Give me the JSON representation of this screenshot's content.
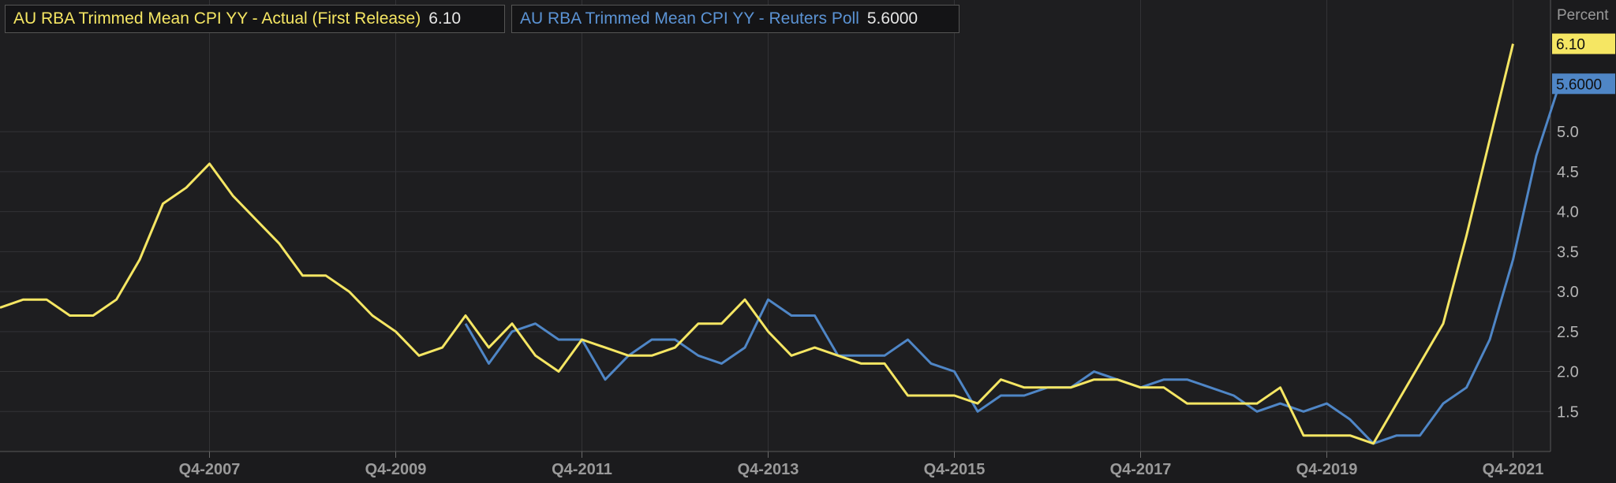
{
  "chart_data": {
    "type": "line",
    "ylabel": "Percent",
    "ylim": [
      1.0,
      6.5
    ],
    "y_ticks": [
      "1.5",
      "2.0",
      "2.5",
      "3.0",
      "3.5",
      "4.0",
      "4.5",
      "5.0"
    ],
    "x_ticks": [
      "Q4-2007",
      "Q4-2009",
      "Q4-2011",
      "Q4-2013",
      "Q4-2015",
      "Q4-2017",
      "Q4-2019",
      "Q4-2021"
    ],
    "grid": true,
    "legend_position": "top-left",
    "series": [
      {
        "name": "AU RBA Trimmed Mean CPI YY - Actual (First Release)",
        "last_value": "6.10",
        "color": "#f5e663",
        "start": "Q3-2005",
        "values": [
          2.8,
          2.9,
          2.9,
          2.7,
          2.7,
          2.9,
          3.4,
          4.1,
          4.3,
          4.6,
          4.2,
          3.9,
          3.6,
          3.2,
          3.2,
          3.0,
          2.7,
          2.5,
          2.2,
          2.3,
          2.7,
          2.3,
          2.6,
          2.2,
          2.0,
          2.4,
          2.3,
          2.2,
          2.2,
          2.3,
          2.6,
          2.6,
          2.9,
          2.5,
          2.2,
          2.3,
          2.2,
          2.1,
          2.1,
          1.7,
          1.7,
          1.7,
          1.6,
          1.9,
          1.8,
          1.8,
          1.8,
          1.9,
          1.9,
          1.8,
          1.8,
          1.6,
          1.6,
          1.6,
          1.6,
          1.8,
          1.2,
          1.2,
          1.2,
          1.1,
          1.6,
          2.1,
          2.6,
          3.7,
          4.9,
          6.1
        ]
      },
      {
        "name": "AU RBA Trimmed Mean CPI YY - Reuters Poll",
        "last_value": "5.6000",
        "color": "#4f86c6",
        "start": "Q3-2010",
        "values": [
          2.6,
          2.1,
          2.5,
          2.6,
          2.4,
          2.4,
          1.9,
          2.2,
          2.4,
          2.4,
          2.2,
          2.1,
          2.3,
          2.9,
          2.7,
          2.7,
          2.2,
          2.2,
          2.2,
          2.4,
          2.1,
          2.0,
          1.5,
          1.7,
          1.7,
          1.8,
          1.8,
          2.0,
          1.9,
          1.8,
          1.9,
          1.9,
          1.8,
          1.7,
          1.5,
          1.6,
          1.5,
          1.6,
          1.4,
          1.1,
          1.2,
          1.2,
          1.6,
          1.8,
          2.4,
          3.4,
          4.7,
          5.6
        ]
      }
    ]
  }
}
